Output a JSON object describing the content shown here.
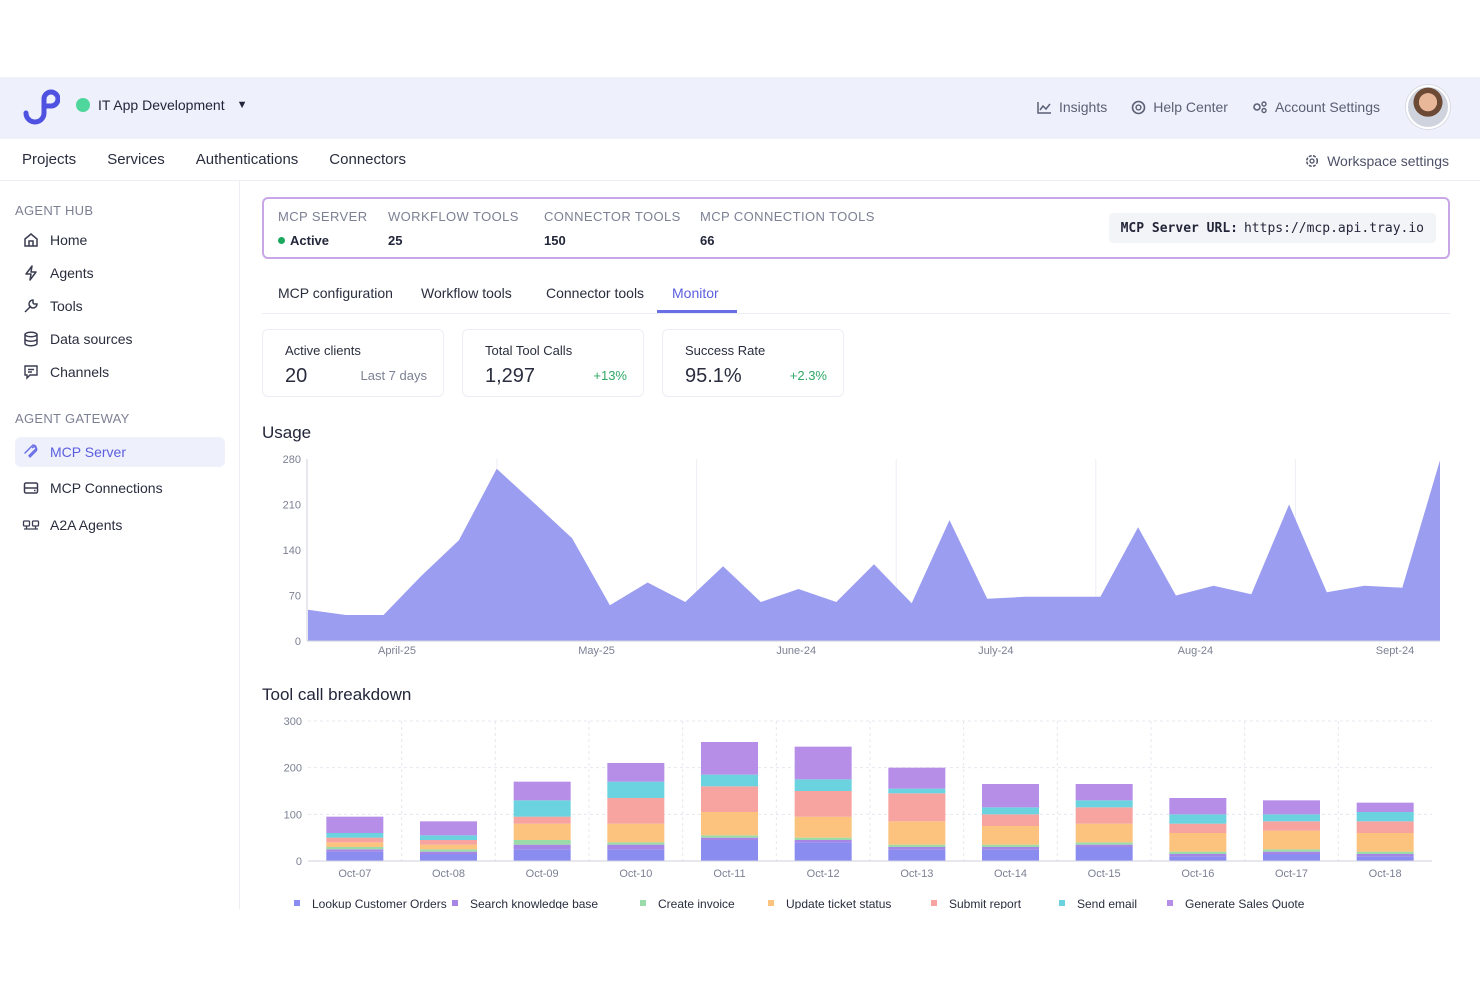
{
  "topbar": {
    "workspace": "IT App Development",
    "links": [
      {
        "label": "Insights",
        "icon": "chart-icon"
      },
      {
        "label": "Help Center",
        "icon": "help-icon"
      },
      {
        "label": "Account Settings",
        "icon": "settings-icon"
      }
    ]
  },
  "nav": {
    "items": [
      "Projects",
      "Services",
      "Authentications",
      "Connectors"
    ],
    "workspace_settings": "Workspace settings"
  },
  "sidebar": {
    "agent_hub_title": "AGENT HUB",
    "agent_hub": [
      {
        "label": "Home",
        "icon": "home-icon"
      },
      {
        "label": "Agents",
        "icon": "bolt-icon"
      },
      {
        "label": "Tools",
        "icon": "wrench-icon"
      },
      {
        "label": "Data sources",
        "icon": "database-icon"
      },
      {
        "label": "Channels",
        "icon": "chat-icon"
      }
    ],
    "agent_gateway_title": "AGENT GATEWAY",
    "agent_gateway": [
      {
        "label": "MCP Server",
        "icon": "mcp-icon",
        "active": true
      },
      {
        "label": "MCP Connections",
        "icon": "connections-icon"
      },
      {
        "label": "A2A Agents",
        "icon": "a2a-icon"
      }
    ]
  },
  "server": {
    "cols": [
      {
        "label": "MCP SERVER",
        "value": "Active"
      },
      {
        "label": "WORKFLOW TOOLS",
        "value": "25"
      },
      {
        "label": "CONNECTOR TOOLS",
        "value": "150"
      },
      {
        "label": "MCP CONNECTION TOOLS",
        "value": "66"
      }
    ],
    "url_label": "MCP Server URL:",
    "url": "https://mcp.api.tray.io"
  },
  "tabs": [
    "MCP configuration",
    "Workflow tools",
    "Connector tools",
    "Monitor"
  ],
  "active_tab": "Monitor",
  "stats": [
    {
      "label": "Active clients",
      "value": "20",
      "sub": "Last 7 days"
    },
    {
      "label": "Total Tool Calls",
      "value": "1,297",
      "sub": "+13%"
    },
    {
      "label": "Success Rate",
      "value": "95.1%",
      "sub": "+2.3%"
    }
  ],
  "usage_title": "Usage",
  "breakdown_title": "Tool call breakdown",
  "colors": {
    "accent": "#5b5fdf",
    "area": "#9a9df0",
    "series": [
      "#8b8cf0",
      "#a685e6",
      "#9adba9",
      "#fcc37e",
      "#f7a3a0",
      "#6bd3df",
      "#b68ee8"
    ]
  },
  "chart_data": [
    {
      "type": "area",
      "title": "Usage",
      "x_ticks": [
        "April-25",
        "May-25",
        "June-24",
        "July-24",
        "Aug-24",
        "Sept-24"
      ],
      "yticks": [
        0,
        70,
        140,
        210,
        280
      ],
      "ylim": [
        0,
        280
      ],
      "values": [
        48,
        40,
        40,
        100,
        155,
        265,
        212,
        158,
        55,
        90,
        60,
        115,
        60,
        80,
        60,
        118,
        58,
        186,
        65,
        68,
        68,
        68,
        175,
        70,
        85,
        72,
        210,
        75,
        85,
        82,
        278
      ],
      "grid": true
    },
    {
      "type": "bar",
      "stacked": true,
      "title": "Tool call breakdown",
      "categories": [
        "Oct-07",
        "Oct-08",
        "Oct-09",
        "Oct-10",
        "Oct-11",
        "Oct-12",
        "Oct-13",
        "Oct-14",
        "Oct-15",
        "Oct-16",
        "Oct-17",
        "Oct-18"
      ],
      "yticks": [
        0,
        100,
        200,
        300
      ],
      "ylim": [
        0,
        300
      ],
      "series": [
        {
          "name": "Lookup Customer Orders",
          "values": [
            20,
            15,
            25,
            25,
            45,
            40,
            25,
            25,
            30,
            10,
            15,
            10
          ]
        },
        {
          "name": "Search knowledge base",
          "values": [
            5,
            5,
            10,
            10,
            5,
            5,
            5,
            5,
            5,
            5,
            5,
            5
          ]
        },
        {
          "name": "Create invoice",
          "values": [
            5,
            5,
            10,
            5,
            5,
            5,
            5,
            5,
            5,
            5,
            5,
            5
          ]
        },
        {
          "name": "Update ticket status",
          "values": [
            10,
            10,
            35,
            40,
            50,
            45,
            50,
            40,
            40,
            40,
            40,
            40
          ]
        },
        {
          "name": "Submit report",
          "values": [
            10,
            10,
            15,
            55,
            55,
            55,
            60,
            25,
            35,
            20,
            20,
            25
          ]
        },
        {
          "name": "Send email",
          "values": [
            10,
            10,
            35,
            35,
            25,
            25,
            10,
            15,
            15,
            20,
            15,
            20
          ]
        },
        {
          "name": "Generate Sales Quote",
          "values": [
            35,
            30,
            40,
            40,
            70,
            70,
            45,
            50,
            35,
            35,
            30,
            20
          ]
        }
      ]
    }
  ]
}
